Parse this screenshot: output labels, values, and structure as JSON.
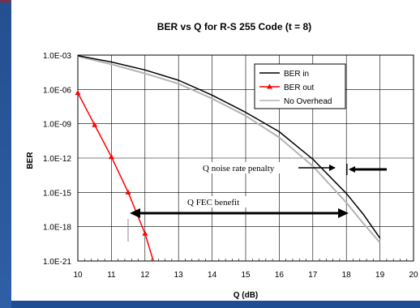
{
  "colors": {
    "slide_background": "#1f4d93",
    "panel": "#ffffff",
    "ber_in": "#000000",
    "ber_out": "#ff0000",
    "no_overhead": "#b3b3b3",
    "annotation": "#000000"
  },
  "chart_data": {
    "type": "line",
    "title": "BER vs Q for R-S 255 Code (t = 8)",
    "xlabel": "Q (dB)",
    "ylabel": "BER",
    "xlim": [
      10,
      20
    ],
    "ylim_exponent": [
      -21,
      -3
    ],
    "y_scale": "log",
    "grid": true,
    "legend_position": "top-right",
    "x_ticks": [
      "10",
      "11",
      "12",
      "13",
      "14",
      "15",
      "16",
      "17",
      "18",
      "19",
      "20"
    ],
    "y_ticks": [
      "1.0E-03",
      "1.0E-06",
      "1.0E-09",
      "1.0E-12",
      "1.0E-15",
      "1.0E-18",
      "1.0E-21"
    ],
    "series": [
      {
        "name": "BER in",
        "color": "#000000",
        "points": [
          [
            10,
            -3.05
          ],
          [
            11,
            -3.6
          ],
          [
            12,
            -4.3
          ],
          [
            13,
            -5.2
          ],
          [
            14,
            -6.5
          ],
          [
            15,
            -8.0
          ],
          [
            16,
            -9.7
          ],
          [
            17,
            -12.1
          ],
          [
            18,
            -15.1
          ],
          [
            18.5,
            -16.9
          ],
          [
            19,
            -19.0
          ]
        ]
      },
      {
        "name": "BER out",
        "color": "#ff0000",
        "marker": "triangle",
        "points": [
          [
            10,
            -6.3
          ],
          [
            10.5,
            -9.1
          ],
          [
            11,
            -11.9
          ],
          [
            11.5,
            -15.0
          ],
          [
            12,
            -18.6
          ],
          [
            12.25,
            -21.0
          ]
        ]
      },
      {
        "name": "No Overhead",
        "color": "#b3b3b3",
        "points": [
          [
            10,
            -3.1
          ],
          [
            11,
            -3.8
          ],
          [
            12,
            -4.6
          ],
          [
            13,
            -5.5
          ],
          [
            14,
            -6.8
          ],
          [
            15,
            -8.3
          ],
          [
            16,
            -10.2
          ],
          [
            17,
            -12.7
          ],
          [
            18,
            -15.9
          ],
          [
            18.5,
            -17.7
          ],
          [
            19,
            -19.4
          ]
        ]
      }
    ],
    "annotations": {
      "noise_penalty": "Q noise rate penalty",
      "fec_benefit": "Q FEC benefit"
    }
  }
}
